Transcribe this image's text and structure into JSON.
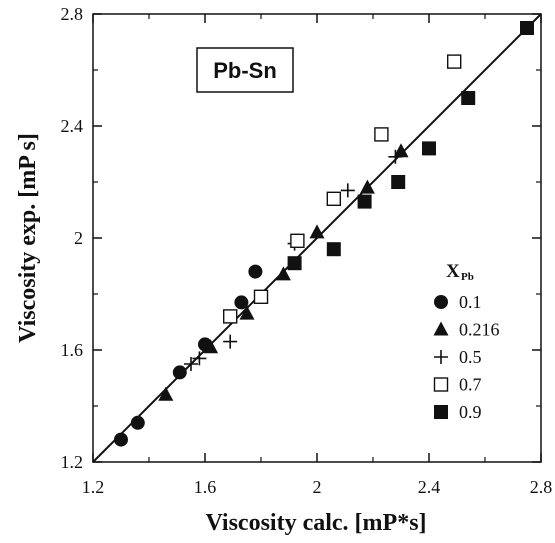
{
  "chart_data": {
    "type": "scatter",
    "xlabel": "Viscosity calc. [mP*s]",
    "ylabel": "Viscosity exp. [mP s]",
    "xlim": [
      1.2,
      2.8
    ],
    "ylim": [
      1.2,
      2.8
    ],
    "x_ticks": [
      "1.2",
      "1.6",
      "2",
      "2.4",
      "2.8"
    ],
    "y_ticks": [
      "1.2",
      "1.6",
      "2",
      "2.4",
      "2.8"
    ],
    "x_tick_values": [
      1.2,
      1.6,
      2.0,
      2.4,
      2.8
    ],
    "y_tick_values": [
      1.2,
      1.6,
      2.0,
      2.4,
      2.8
    ],
    "grid": false,
    "legend_position": "right",
    "legend_title": "X",
    "legend_title_sub": "Pb",
    "annotation": "Pb-Sn",
    "reference_line": {
      "x": [
        1.2,
        2.8
      ],
      "y": [
        1.2,
        2.8
      ]
    },
    "series": [
      {
        "name": "0.1",
        "marker": "circle",
        "x": [
          1.3,
          1.36,
          1.51,
          1.6,
          1.73,
          1.78
        ],
        "y": [
          1.28,
          1.34,
          1.52,
          1.62,
          1.77,
          1.88
        ]
      },
      {
        "name": "0.216",
        "marker": "triangle",
        "x": [
          1.46,
          1.62,
          1.75,
          1.88,
          2.0,
          2.18,
          2.3
        ],
        "y": [
          1.44,
          1.61,
          1.73,
          1.87,
          2.02,
          2.18,
          2.31
        ]
      },
      {
        "name": "0.5",
        "marker": "plus",
        "x": [
          1.55,
          1.58,
          1.69,
          1.92,
          2.11,
          2.28
        ],
        "y": [
          1.55,
          1.57,
          1.63,
          1.98,
          2.17,
          2.29
        ]
      },
      {
        "name": "0.7",
        "marker": "open-square",
        "x": [
          1.69,
          1.8,
          1.93,
          2.06,
          2.23,
          2.49
        ],
        "y": [
          1.72,
          1.79,
          1.99,
          2.14,
          2.37,
          2.63
        ]
      },
      {
        "name": "0.9",
        "marker": "filled-square",
        "x": [
          1.92,
          2.06,
          2.17,
          2.29,
          2.4,
          2.54,
          2.75
        ],
        "y": [
          1.91,
          1.96,
          2.13,
          2.2,
          2.32,
          2.5,
          2.75
        ]
      }
    ]
  }
}
